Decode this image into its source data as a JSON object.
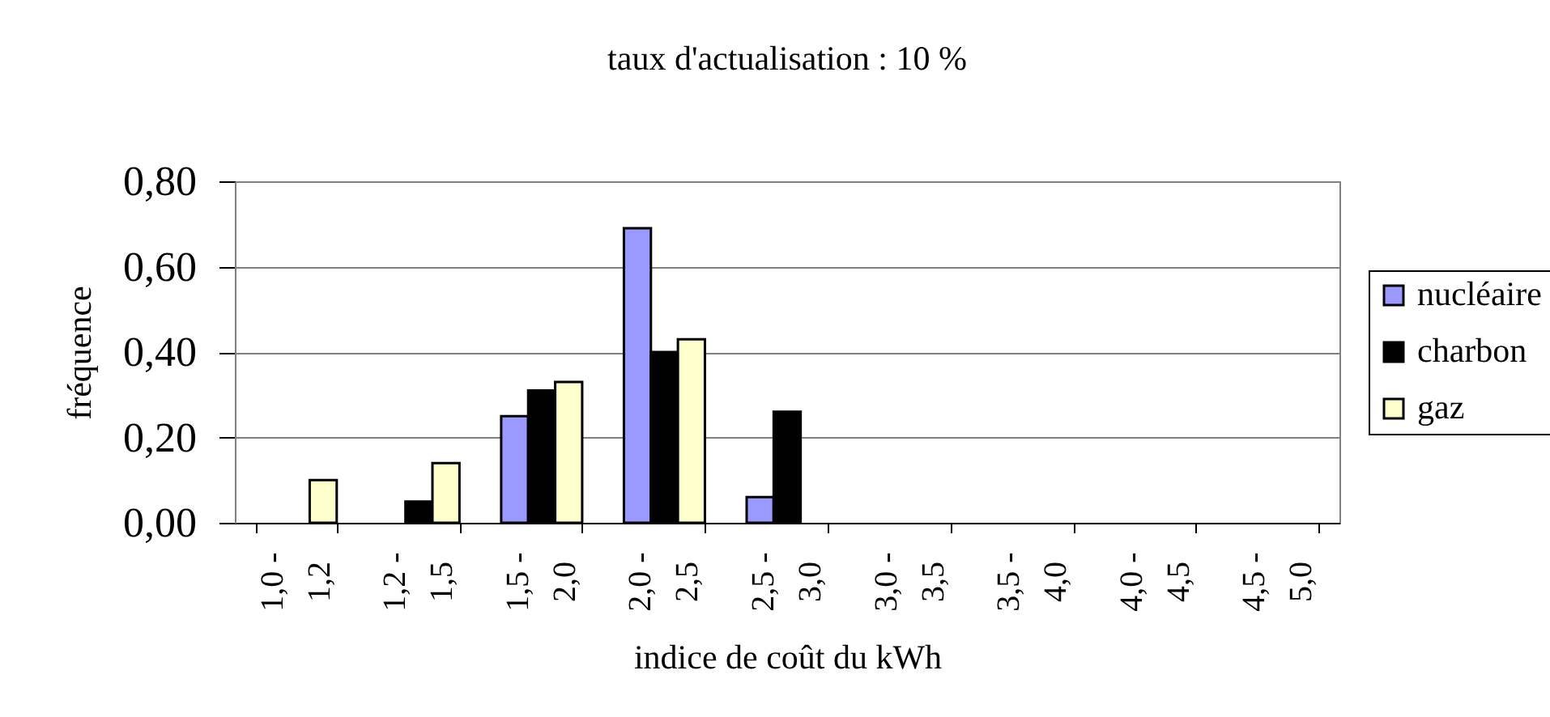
{
  "chart_data": {
    "type": "bar",
    "title": "taux d'actualisation : 10 %",
    "xlabel": "indice de coût du kWh",
    "ylabel": "fréquence",
    "categories": [
      "1,0 - 1,2",
      "1,2 - 1,5",
      "1,5 - 2,0",
      "2,0 - 2,5",
      "2,5 - 3,0",
      "3,0 - 3,5",
      "3,5 - 4,0",
      "4,0 - 4,5",
      "4,5 - 5,0"
    ],
    "series": [
      {
        "name": "nucléaire",
        "color": "#9999ff",
        "values": [
          null,
          null,
          0.25,
          0.69,
          0.06,
          null,
          null,
          null,
          null
        ]
      },
      {
        "name": "charbon",
        "color": "#000000",
        "values": [
          null,
          0.05,
          0.31,
          0.4,
          0.26,
          null,
          null,
          null,
          null
        ]
      },
      {
        "name": "gaz",
        "color": "#ffffcc",
        "values": [
          0.1,
          0.14,
          0.33,
          0.43,
          null,
          null,
          null,
          null,
          null
        ]
      }
    ],
    "ylim": [
      0,
      0.8
    ],
    "yticks": [
      {
        "value": 0,
        "label": "0,00"
      },
      {
        "value": 0.2,
        "label": "0,20"
      },
      {
        "value": 0.4,
        "label": "0,40"
      },
      {
        "value": 0.6,
        "label": "0,60"
      },
      {
        "value": 0.8,
        "label": "0,80"
      }
    ],
    "grid": "y",
    "legend": "right"
  }
}
